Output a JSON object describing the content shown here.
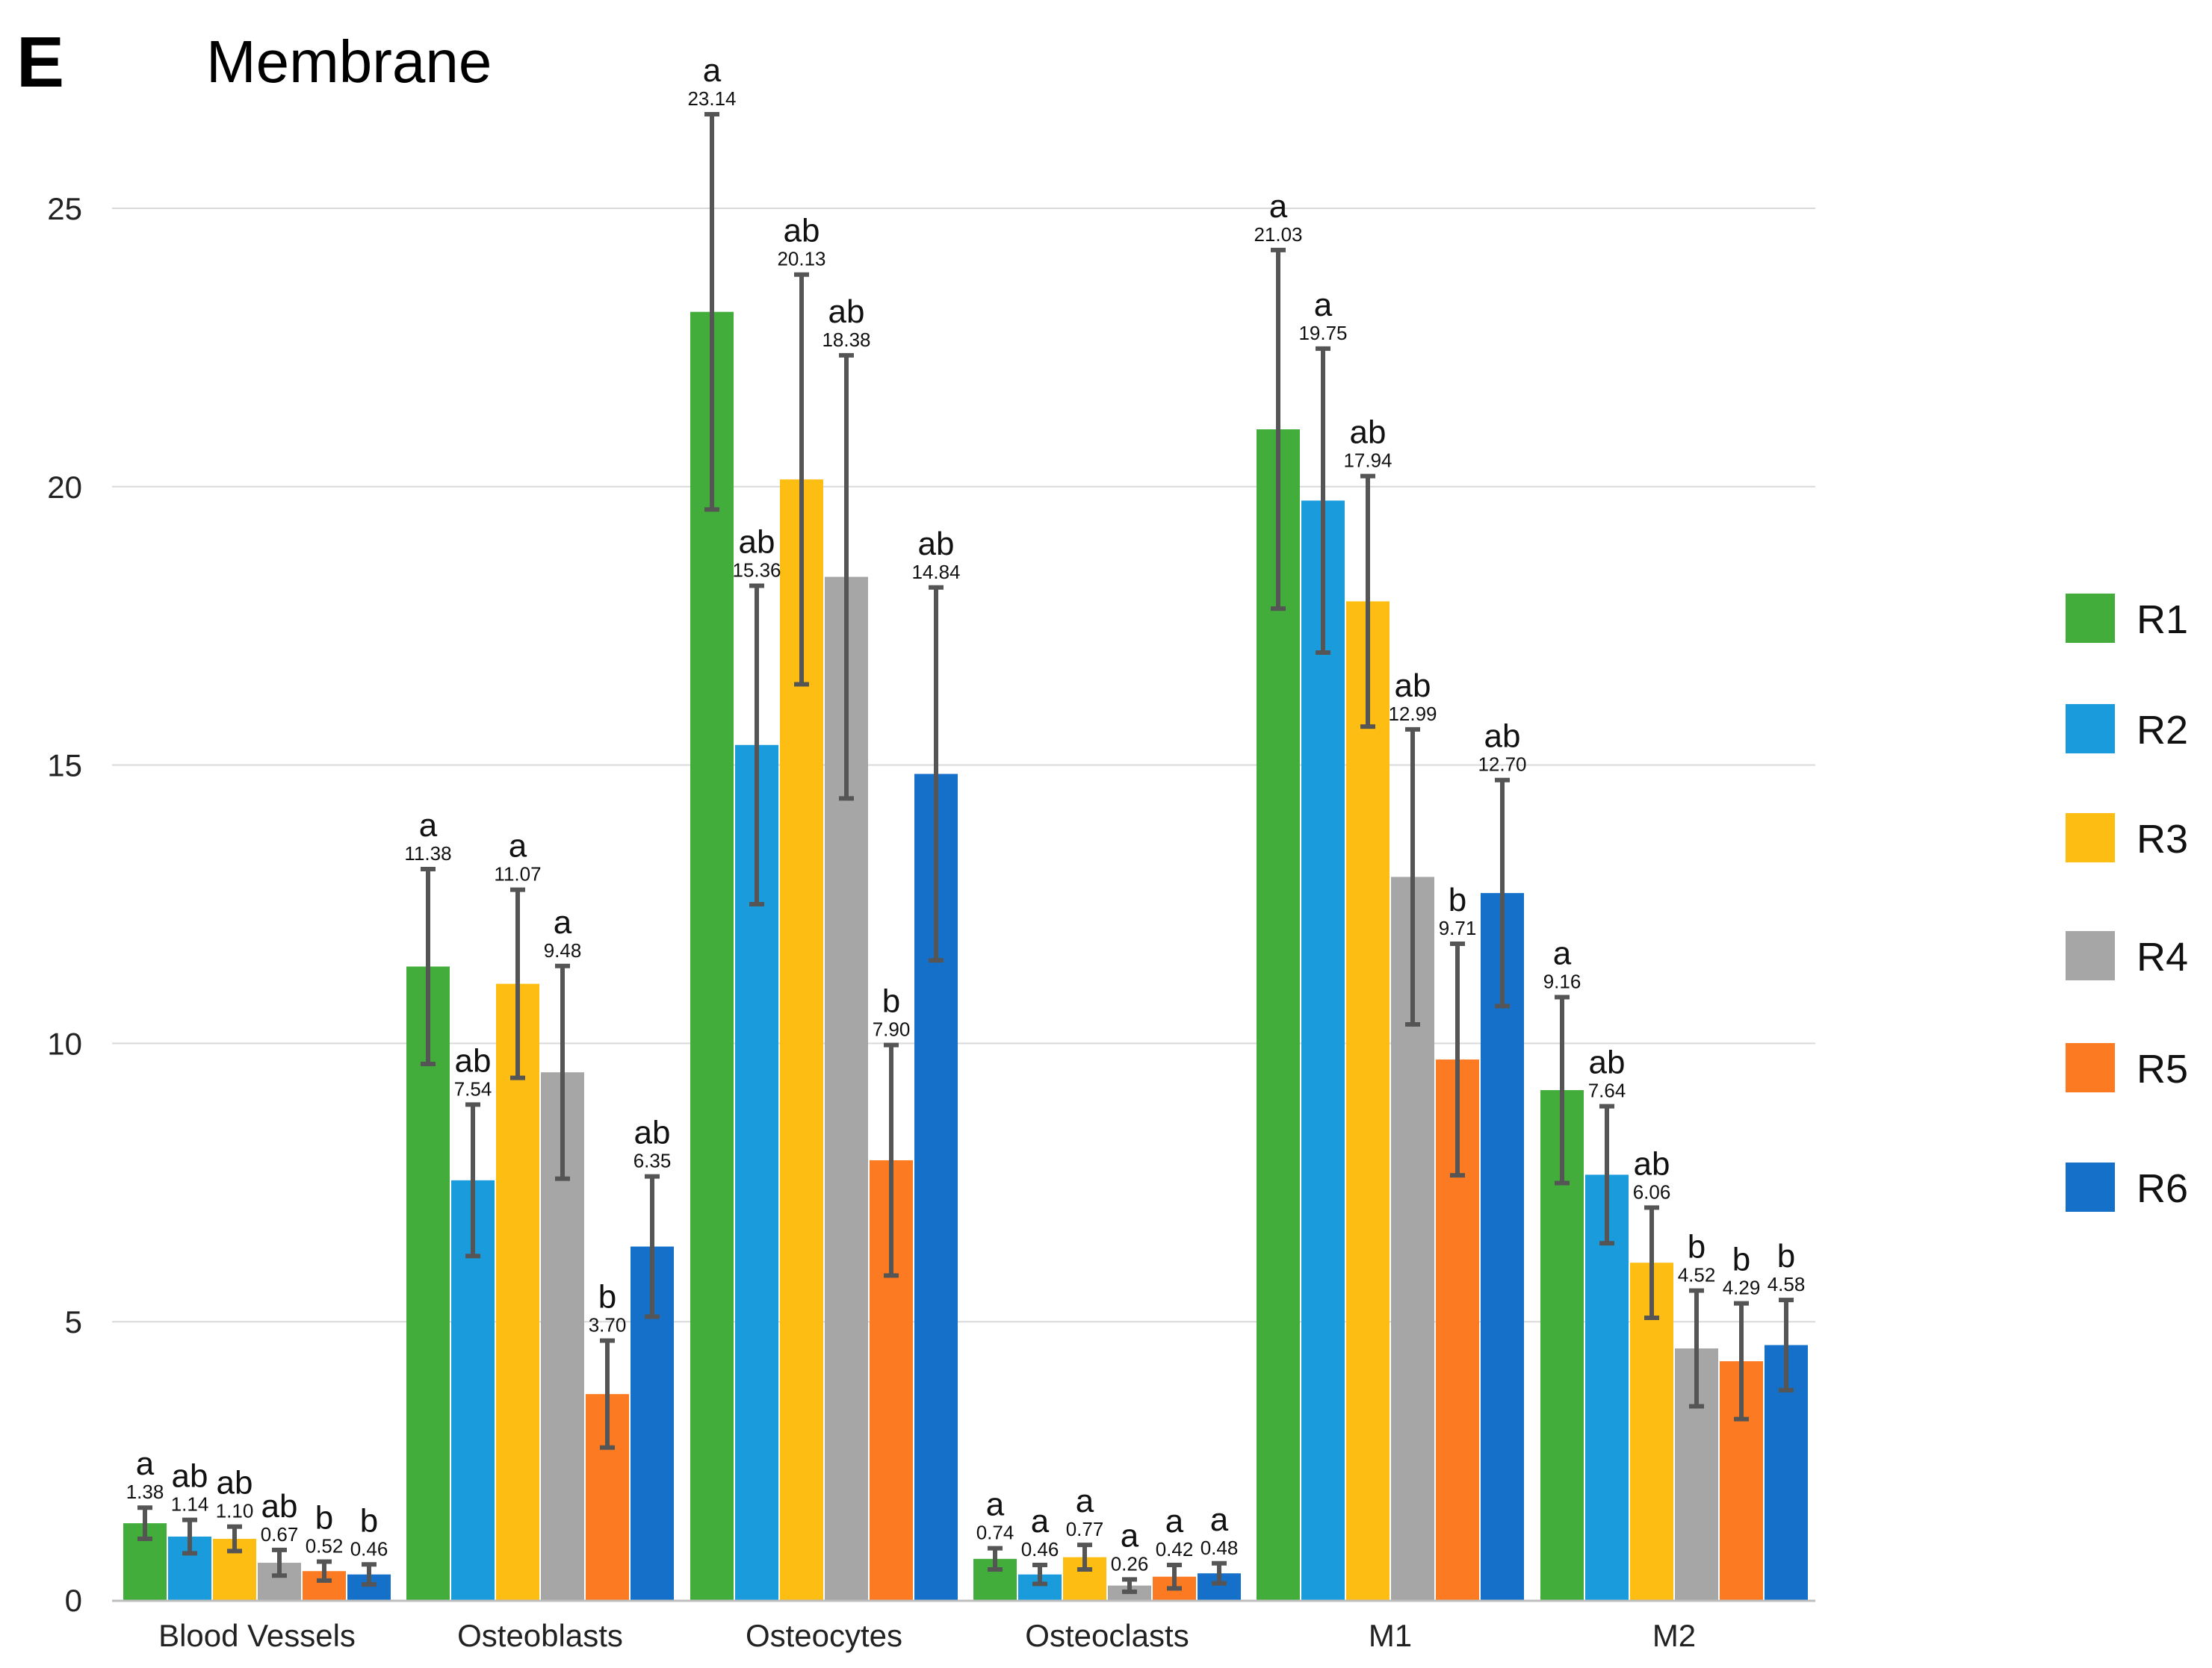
{
  "panel_label": "E",
  "chart_data": {
    "type": "bar",
    "title": "Membrane",
    "xlabel": "",
    "ylabel": "",
    "ylim": [
      0,
      25
    ],
    "yticks": [
      0,
      5,
      10,
      15,
      20,
      25
    ],
    "grid": true,
    "legend_position": "right",
    "categories": [
      "Blood Vessels",
      "Osteoblasts",
      "Osteocytes",
      "Osteoclasts",
      "M1",
      "M2"
    ],
    "series": [
      {
        "name": "R1",
        "color": "#43ad3b",
        "values": [
          1.38,
          11.38,
          23.14,
          0.74,
          21.03,
          9.16
        ],
        "errors": [
          0.28,
          1.75,
          3.55,
          0.19,
          3.22,
          1.67
        ],
        "labels": [
          "1.38",
          "11.38",
          "23.14",
          "0.74",
          "21.03",
          "9.16"
        ],
        "sig": [
          "a",
          "a",
          "a",
          "a",
          "a",
          "a"
        ]
      },
      {
        "name": "R2",
        "color": "#1a9bdb",
        "values": [
          1.14,
          7.54,
          15.36,
          0.46,
          19.75,
          7.64
        ],
        "errors": [
          0.3,
          1.36,
          2.86,
          0.17,
          2.73,
          1.23
        ],
        "labels": [
          "1.14",
          "7.54",
          "15.36",
          "0.46",
          "19.75",
          "7.64"
        ],
        "sig": [
          "ab",
          "ab",
          "ab",
          "a",
          "a",
          "ab"
        ]
      },
      {
        "name": "R3",
        "color": "#fdbd12",
        "values": [
          1.1,
          11.07,
          20.13,
          0.77,
          17.94,
          6.06
        ],
        "errors": [
          0.22,
          1.69,
          3.68,
          0.22,
          2.25,
          0.99
        ],
        "labels": [
          "1.10",
          "11.07",
          "20.13",
          "0.77",
          "17.94",
          "6.06"
        ],
        "sig": [
          "ab",
          "a",
          "ab",
          "a",
          "ab",
          "ab"
        ]
      },
      {
        "name": "R4",
        "color": "#a6a6a6",
        "values": [
          0.67,
          9.48,
          18.38,
          0.26,
          12.99,
          4.52
        ],
        "errors": [
          0.23,
          1.91,
          3.98,
          0.11,
          2.65,
          1.04
        ],
        "labels": [
          "0.67",
          "9.48",
          "18.38",
          "0.26",
          "12.99",
          "4.52"
        ],
        "sig": [
          "ab",
          "a",
          "ab",
          "a",
          "ab",
          "b"
        ]
      },
      {
        "name": "R5",
        "color": "#fc7b22",
        "values": [
          0.52,
          3.7,
          7.9,
          0.42,
          9.71,
          4.29
        ],
        "errors": [
          0.17,
          0.96,
          2.07,
          0.21,
          2.08,
          1.04
        ],
        "labels": [
          "0.52",
          "3.70",
          "7.90",
          "0.42",
          "9.71",
          "4.29"
        ],
        "sig": [
          "b",
          "b",
          "b",
          "a",
          "b",
          "b"
        ]
      },
      {
        "name": "R6",
        "color": "#1470c8",
        "values": [
          0.46,
          6.35,
          14.84,
          0.48,
          12.7,
          4.58
        ],
        "errors": [
          0.18,
          1.26,
          3.35,
          0.18,
          2.03,
          0.81
        ],
        "labels": [
          "0.46",
          "6.35",
          "14.84",
          "0.48",
          "12.70",
          "4.58"
        ],
        "sig": [
          "b",
          "ab",
          "ab",
          "a",
          "ab",
          "b"
        ]
      }
    ]
  }
}
